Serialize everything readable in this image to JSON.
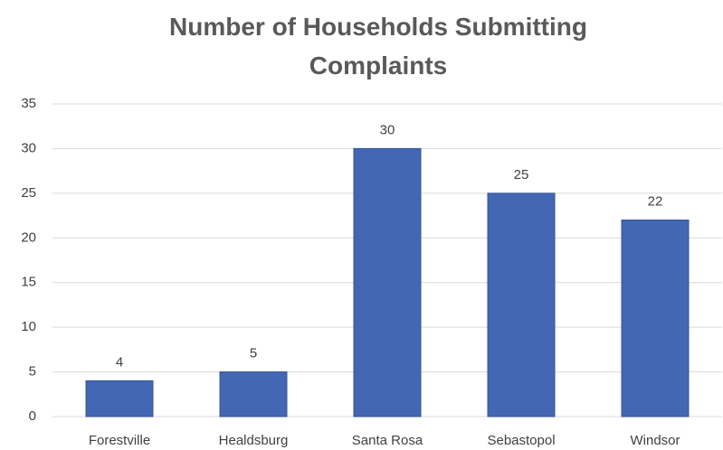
{
  "chart_data": {
    "type": "bar",
    "title": "Number of Households Submitting Complaints",
    "categories": [
      "Forestville",
      "Healdsburg",
      "Santa Rosa",
      "Sebastopol",
      "Windsor"
    ],
    "values": [
      4,
      5,
      30,
      25,
      22
    ],
    "color": "#4467b3",
    "ylim": [
      0,
      35
    ],
    "yticks": [
      0,
      5,
      10,
      15,
      20,
      25,
      30,
      35
    ],
    "grid": true
  }
}
